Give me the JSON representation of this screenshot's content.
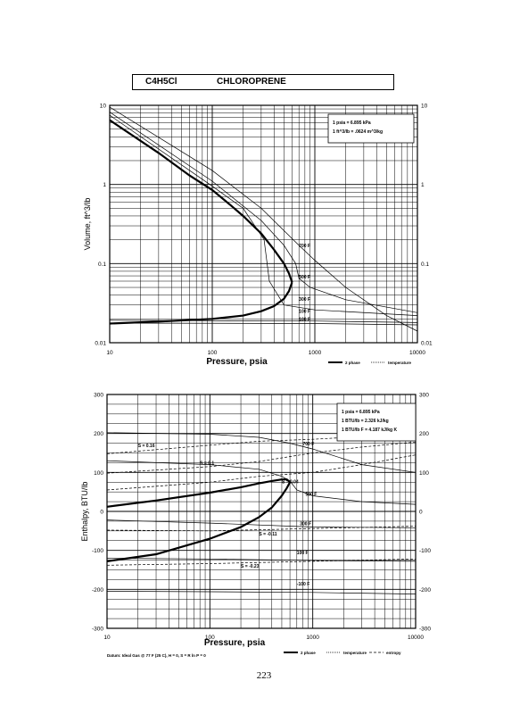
{
  "header": {
    "formula": "C4H5Cl",
    "name": "CHLOROPRENE"
  },
  "page_number": "223",
  "chart_data": [
    {
      "type": "line",
      "id": "volume",
      "xlabel": "Pressure, psia",
      "ylabel": "Volume, ft^3/lb",
      "xscale": "log",
      "yscale": "log",
      "xlim": [
        10,
        10000
      ],
      "ylim": [
        0.01,
        10
      ],
      "x_ticks": [
        "10",
        "100",
        "1000",
        "10000"
      ],
      "y_ticks": [
        "10",
        "1",
        "0.1",
        "0.01"
      ],
      "grid": true,
      "notes": [
        "1 psia = 6.895 kPa",
        "1 ft^3/lb = .0624 m^3/kg"
      ],
      "legend": [
        "2 phase",
        "temperature"
      ],
      "legend_position": "bottom-right",
      "two_phase": {
        "liquid": [
          [
            10,
            0.0175
          ],
          [
            30,
            0.0185
          ],
          [
            100,
            0.02
          ],
          [
            200,
            0.022
          ],
          [
            300,
            0.025
          ],
          [
            400,
            0.029
          ],
          [
            500,
            0.036
          ],
          [
            560,
            0.045
          ],
          [
            600,
            0.058
          ]
        ],
        "vapor": [
          [
            10,
            6.5
          ],
          [
            30,
            2.5
          ],
          [
            60,
            1.3
          ],
          [
            100,
            0.85
          ],
          [
            150,
            0.55
          ],
          [
            200,
            0.4
          ],
          [
            300,
            0.24
          ],
          [
            400,
            0.15
          ],
          [
            500,
            0.1
          ],
          [
            560,
            0.075
          ],
          [
            600,
            0.058
          ]
        ]
      },
      "isotherms": [
        {
          "name": "700 F",
          "points": [
            [
              10,
              9.5
            ],
            [
              100,
              1.5
            ],
            [
              300,
              0.5
            ],
            [
              700,
              0.17
            ],
            [
              1000,
              0.11
            ],
            [
              2000,
              0.05
            ],
            [
              5000,
              0.022
            ],
            [
              10000,
              0.014
            ]
          ]
        },
        {
          "name": "500 F",
          "points": [
            [
              10,
              8.2
            ],
            [
              100,
              1.1
            ],
            [
              300,
              0.35
            ],
            [
              500,
              0.17
            ],
            [
              650,
              0.1
            ],
            [
              700,
              0.065
            ],
            [
              900,
              0.05
            ],
            [
              2000,
              0.035
            ],
            [
              10000,
              0.024
            ]
          ]
        },
        {
          "name": "300 F",
          "points": [
            [
              10,
              7.5
            ],
            [
              100,
              0.95
            ],
            [
              200,
              0.5
            ],
            [
              320,
              0.2
            ],
            [
              360,
              0.06
            ],
            [
              500,
              0.03
            ],
            [
              1000,
              0.026
            ],
            [
              10000,
              0.022
            ]
          ]
        },
        {
          "name": "100 F",
          "points": [
            [
              10,
              0.0192
            ],
            [
              1000,
              0.0188
            ],
            [
              10000,
              0.018
            ]
          ]
        },
        {
          "name": "100 F",
          "points": [
            [
              10,
              0.0177
            ],
            [
              1000,
              0.0175
            ],
            [
              10000,
              0.0168
            ]
          ]
        }
      ]
    },
    {
      "type": "line",
      "id": "enthalpy",
      "xlabel": "Pressure, psia",
      "ylabel": "Enthalpy, BTU/lb",
      "xscale": "log",
      "xlim": [
        10,
        10000
      ],
      "ylim": [
        -300,
        300
      ],
      "x_ticks": [
        "10",
        "100",
        "1000",
        "10000"
      ],
      "y_ticks": [
        "300",
        "200",
        "100",
        "0",
        "-100",
        "-200",
        "-300"
      ],
      "grid": true,
      "notes": [
        "1 psia = 6.895 kPa",
        "1 BTU/lb = 2.326 kJ/kg",
        "1 BTU/lb F = 4.187 kJ/kg K"
      ],
      "legend": [
        "2 phase",
        "temperature",
        "entropy"
      ],
      "legend_position": "bottom-right",
      "footnote": "Datum: Ideal Gas @ 77 F (25 C), H = 0, S = R ln P = 0",
      "two_phase": {
        "liquid": [
          [
            10,
            -128
          ],
          [
            30,
            -110
          ],
          [
            100,
            -70
          ],
          [
            200,
            -40
          ],
          [
            300,
            -15
          ],
          [
            400,
            10
          ],
          [
            500,
            40
          ],
          [
            560,
            60
          ],
          [
            600,
            75
          ]
        ],
        "vapor": [
          [
            10,
            12
          ],
          [
            30,
            28
          ],
          [
            100,
            48
          ],
          [
            200,
            62
          ],
          [
            300,
            72
          ],
          [
            400,
            78
          ],
          [
            500,
            82
          ],
          [
            560,
            82
          ],
          [
            600,
            75
          ]
        ]
      },
      "isotherms": [
        {
          "name": "700 F",
          "points": [
            [
              10,
              202
            ],
            [
              100,
              198
            ],
            [
              300,
              190
            ],
            [
              600,
              175
            ],
            [
              1000,
              160
            ],
            [
              3000,
              120
            ],
            [
              10000,
              100
            ]
          ]
        },
        {
          "name": "500 F",
          "points": [
            [
              10,
              130
            ],
            [
              100,
              120
            ],
            [
              300,
              108
            ],
            [
              500,
              90
            ],
            [
              600,
              78
            ],
            [
              700,
              55
            ],
            [
              1000,
              40
            ],
            [
              3000,
              25
            ],
            [
              10000,
              18
            ]
          ]
        },
        {
          "name": "300 F",
          "points": [
            [
              10,
              -22
            ],
            [
              100,
              -30
            ],
            [
              1000,
              -40
            ],
            [
              10000,
              -42
            ]
          ]
        },
        {
          "name": "100 F",
          "points": [
            [
              10,
              -120
            ],
            [
              100,
              -122
            ],
            [
              1000,
              -126
            ],
            [
              10000,
              -128
            ]
          ]
        },
        {
          "name": "-100 F",
          "points": [
            [
              10,
              -205
            ],
            [
              100,
              -206
            ],
            [
              1000,
              -208
            ],
            [
              10000,
              -212
            ]
          ]
        }
      ],
      "isentropes": [
        {
          "name": "S = 0.16",
          "points": [
            [
              10,
              148
            ],
            [
              100,
              170
            ],
            [
              300,
              180
            ],
            [
              1000,
              185
            ],
            [
              3000,
              192
            ],
            [
              10000,
              205
            ]
          ]
        },
        {
          "name": "S = 0.1",
          "points": [
            [
              10,
              98
            ],
            [
              100,
              115
            ],
            [
              300,
              128
            ],
            [
              1000,
              150
            ],
            [
              3000,
              165
            ],
            [
              10000,
              178
            ]
          ]
        },
        {
          "name": "S = 0.04",
          "points": [
            [
              10,
              55
            ],
            [
              100,
              75
            ],
            [
              300,
              90
            ],
            [
              1000,
              100
            ],
            [
              3000,
              120
            ],
            [
              10000,
              145
            ]
          ]
        },
        {
          "name": "S = -0.11",
          "points": [
            [
              10,
              -48
            ],
            [
              100,
              -50
            ],
            [
              1000,
              -44
            ],
            [
              10000,
              -38
            ]
          ]
        },
        {
          "name": "S = -0.23",
          "points": [
            [
              10,
              -138
            ],
            [
              100,
              -134
            ],
            [
              1000,
              -128
            ],
            [
              10000,
              -122
            ]
          ]
        }
      ]
    }
  ]
}
